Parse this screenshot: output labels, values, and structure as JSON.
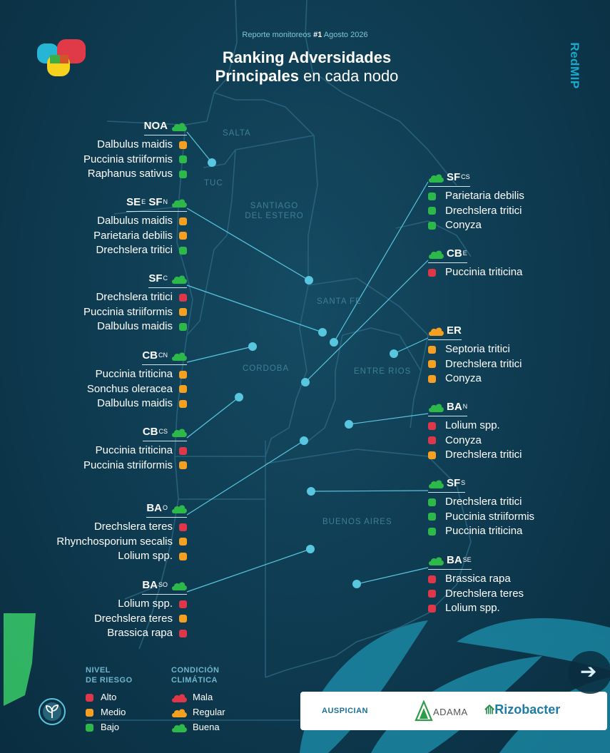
{
  "header": {
    "subtitle_pre": "Reporte monitoreos ",
    "subtitle_num": "#1",
    "subtitle_post": " Agosto 2026",
    "title_line1": "Ranking Adversidades",
    "title_line2_bold": "Principales",
    "title_line2_rest": " en cada nodo",
    "brand": "RedMIP"
  },
  "colors": {
    "alto": "#e0364a",
    "medio": "#f5a020",
    "bajo": "#2db84a",
    "connector": "#58c6de"
  },
  "provinces": {
    "salta": "SALTA",
    "tuc": "TUC",
    "sde1": "SANTIAGO",
    "sde2": "DEL ESTERO",
    "santafe": "SANTA FE",
    "cordoba": "CORDOBA",
    "entrerios": "ENTRE RIOS",
    "buenosaires": "BUENOS AIRES"
  },
  "nodes_left": [
    {
      "name": "NOA",
      "sup": "",
      "cond": "buena",
      "items": [
        {
          "label": "Dalbulus maidis",
          "risk": "medio"
        },
        {
          "label": "Puccinia striiformis",
          "risk": "bajo"
        },
        {
          "label": "Raphanus sativus",
          "risk": "bajo"
        }
      ]
    },
    {
      "name": "SE",
      "sup": "E",
      "name2": "SF",
      "sup2": "N",
      "cond": "buena",
      "items": [
        {
          "label": "Dalbulus maidis",
          "risk": "medio"
        },
        {
          "label": "Parietaria debilis",
          "risk": "medio"
        },
        {
          "label": "Drechslera tritici",
          "risk": "bajo"
        }
      ]
    },
    {
      "name": "SF",
      "sup": "C",
      "cond": "buena",
      "items": [
        {
          "label": "Drechslera tritici",
          "risk": "alto"
        },
        {
          "label": "Puccinia striiformis",
          "risk": "medio"
        },
        {
          "label": "Dalbulus maidis",
          "risk": "bajo"
        }
      ]
    },
    {
      "name": "CB",
      "sup": "CN",
      "cond": "buena",
      "items": [
        {
          "label": "Puccinia triticina",
          "risk": "medio"
        },
        {
          "label": "Sonchus oleracea",
          "risk": "medio"
        },
        {
          "label": "Dalbulus maidis",
          "risk": "medio"
        }
      ]
    },
    {
      "name": "CB",
      "sup": "CS",
      "cond": "buena",
      "items": [
        {
          "label": "Puccinia triticina",
          "risk": "alto"
        },
        {
          "label": "Puccinia striiformis",
          "risk": "medio"
        }
      ]
    },
    {
      "name": "BA",
      "sup": "O",
      "cond": "buena",
      "items": [
        {
          "label": "Drechslera teres",
          "risk": "alto"
        },
        {
          "label": "Rhynchosporium secalis",
          "risk": "medio"
        },
        {
          "label": "Lolium spp.",
          "risk": "medio"
        }
      ]
    },
    {
      "name": "BA",
      "sup": "SO",
      "cond": "buena",
      "items": [
        {
          "label": "Lolium spp.",
          "risk": "alto"
        },
        {
          "label": "Drechslera teres",
          "risk": "medio"
        },
        {
          "label": "Brassica rapa",
          "risk": "alto"
        }
      ]
    }
  ],
  "nodes_right": [
    {
      "name": "SF",
      "sup": "CS",
      "cond": "buena",
      "items": [
        {
          "label": "Parietaria debilis",
          "risk": "bajo"
        },
        {
          "label": "Drechslera tritici",
          "risk": "bajo"
        },
        {
          "label": "Conyza",
          "risk": "bajo"
        }
      ]
    },
    {
      "name": "CB",
      "sup": "E",
      "cond": "buena",
      "items": [
        {
          "label": "Puccinia triticina",
          "risk": "alto"
        }
      ]
    },
    {
      "name": "ER",
      "sup": "",
      "cond": "regular",
      "items": [
        {
          "label": "Septoria tritici",
          "risk": "medio"
        },
        {
          "label": "Drechslera tritici",
          "risk": "medio"
        },
        {
          "label": "Conyza",
          "risk": "medio"
        }
      ]
    },
    {
      "name": "BA",
      "sup": "N",
      "cond": "buena",
      "items": [
        {
          "label": "Lolium spp.",
          "risk": "alto"
        },
        {
          "label": "Conyza",
          "risk": "alto"
        },
        {
          "label": "Drechslera tritici",
          "risk": "medio"
        }
      ]
    },
    {
      "name": "SF",
      "sup": "S",
      "cond": "buena",
      "items": [
        {
          "label": "Drechslera tritici",
          "risk": "bajo"
        },
        {
          "label": "Puccinia striiformis",
          "risk": "bajo"
        },
        {
          "label": "Puccinia triticina",
          "risk": "bajo"
        }
      ]
    },
    {
      "name": "BA",
      "sup": "SE",
      "cond": "buena",
      "items": [
        {
          "label": "Brassica rapa",
          "risk": "alto"
        },
        {
          "label": "Drechslera teres",
          "risk": "alto"
        },
        {
          "label": "Lolium spp.",
          "risk": "alto"
        }
      ]
    }
  ],
  "legend": {
    "risk_title1": "NIVEL",
    "risk_title2": "DE RIESGO",
    "clim_title1": "CONDICIÓN",
    "clim_title2": "CLIMÁTICA",
    "risk": [
      {
        "label": "Alto",
        "level": "alto"
      },
      {
        "label": "Medio",
        "level": "medio"
      },
      {
        "label": "Bajo",
        "level": "bajo"
      }
    ],
    "climate": [
      {
        "label": "Mala",
        "level": "mala"
      },
      {
        "label": "Regular",
        "level": "regular"
      },
      {
        "label": "Buena",
        "level": "buena"
      }
    ]
  },
  "sponsors": {
    "label": "AUSPICIAN",
    "adama": "ADAMA",
    "rizobacter": "Rizobacter"
  },
  "icons": {
    "logo": "redmip-logo",
    "plant": "plant-badge-icon",
    "next": "arrow-right-icon",
    "weather": "cloud-icon"
  }
}
